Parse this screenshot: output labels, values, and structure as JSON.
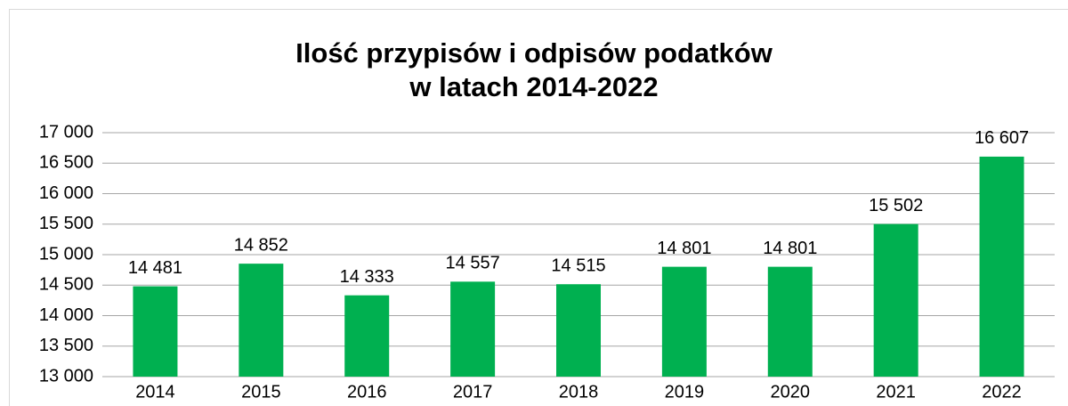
{
  "chart_data": {
    "type": "bar",
    "title": [
      "Ilość przypisów i odpisów podatków",
      "w latach 2014-2022"
    ],
    "categories": [
      "2014",
      "2015",
      "2016",
      "2017",
      "2018",
      "2019",
      "2020",
      "2021",
      "2022"
    ],
    "values": [
      14481,
      14852,
      14333,
      14557,
      14515,
      14801,
      14801,
      15502,
      16607
    ],
    "value_labels": [
      "14 481",
      "14 852",
      "14 333",
      "14 557",
      "14 515",
      "14 801",
      "14 801",
      "15 502",
      "16 607"
    ],
    "color": "#00b050",
    "ylim": [
      13000,
      17000
    ],
    "yticks": [
      {
        "value": 13000,
        "label": "13 000"
      },
      {
        "value": 13500,
        "label": "13 500"
      },
      {
        "value": 14000,
        "label": "14 000"
      },
      {
        "value": 14500,
        "label": "14 500"
      },
      {
        "value": 15000,
        "label": "15 000"
      },
      {
        "value": 15500,
        "label": "15 500"
      },
      {
        "value": 16000,
        "label": "16 000"
      },
      {
        "value": 16500,
        "label": "16 500"
      },
      {
        "value": 17000,
        "label": "17 000"
      }
    ],
    "grid": true
  }
}
